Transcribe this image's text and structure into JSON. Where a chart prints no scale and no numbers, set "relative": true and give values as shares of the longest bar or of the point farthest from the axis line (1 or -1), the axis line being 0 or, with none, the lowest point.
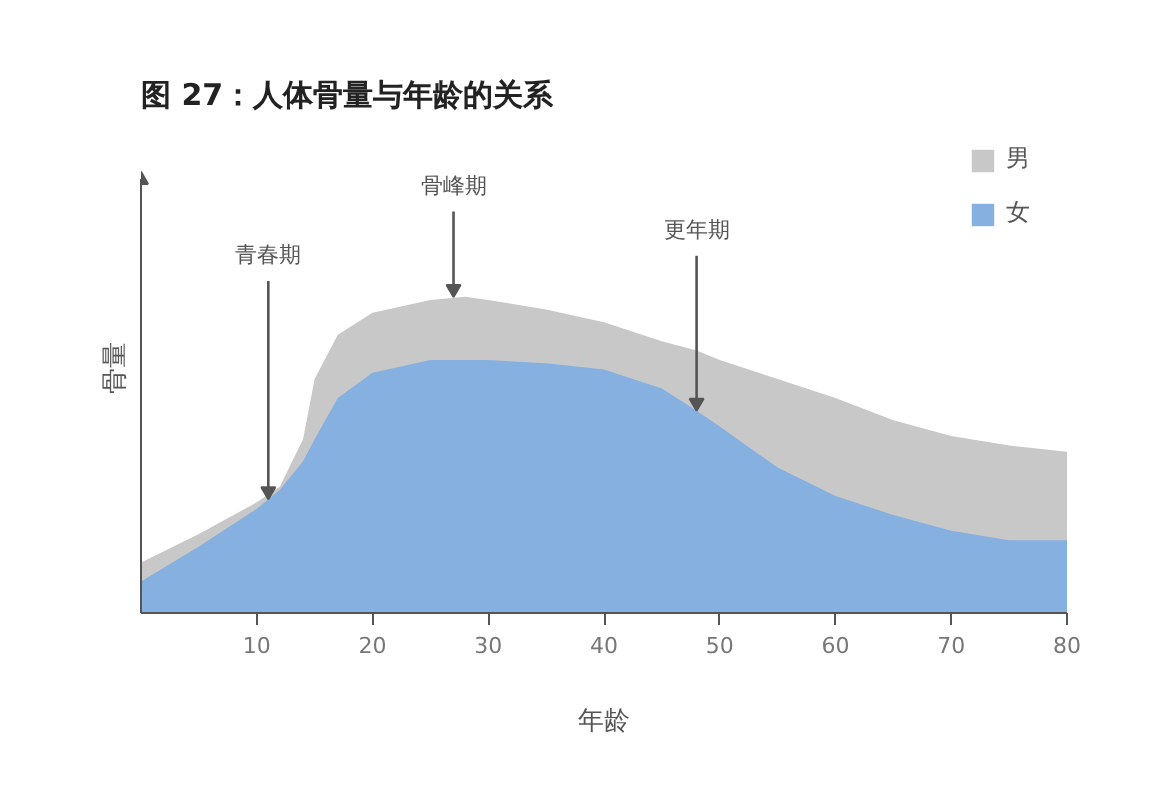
{
  "chart_data": {
    "type": "area",
    "title": "图 27：人体骨量与年龄的关系",
    "xlabel": "年龄",
    "ylabel": "骨量",
    "relative": true,
    "x": [
      0,
      5,
      10,
      12,
      14,
      15,
      17,
      20,
      25,
      28,
      30,
      35,
      40,
      45,
      48,
      50,
      55,
      60,
      65,
      70,
      75,
      80
    ],
    "series": [
      {
        "name": "男",
        "color": "#c8c8c8",
        "values": [
          0.16,
          0.25,
          0.35,
          0.4,
          0.55,
          0.74,
          0.88,
          0.95,
          0.99,
          1.0,
          0.99,
          0.96,
          0.92,
          0.86,
          0.83,
          0.8,
          0.74,
          0.68,
          0.61,
          0.56,
          0.53,
          0.51
        ]
      },
      {
        "name": "女",
        "color": "#85b0e0",
        "values": [
          0.1,
          0.21,
          0.33,
          0.39,
          0.48,
          0.55,
          0.68,
          0.76,
          0.8,
          0.8,
          0.8,
          0.79,
          0.77,
          0.71,
          0.64,
          0.59,
          0.46,
          0.37,
          0.31,
          0.26,
          0.23,
          0.23
        ]
      }
    ],
    "xlim": [
      0,
      80
    ],
    "xticks": [
      10,
      20,
      30,
      40,
      50,
      60,
      70,
      80
    ],
    "annotations": [
      {
        "text": "青春期",
        "x": 11,
        "y": 0.36
      },
      {
        "text": "骨峰期",
        "x": 27,
        "y": 1.0
      },
      {
        "text": "更年期",
        "x": 48,
        "y": 0.64
      }
    ],
    "grid": false,
    "legend": "top right"
  }
}
